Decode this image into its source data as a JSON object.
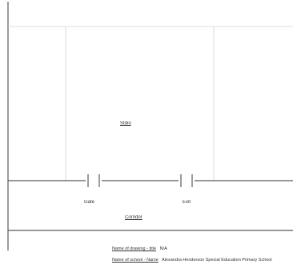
{
  "diagram": {
    "room_label": "Stdio",
    "gate_left_label": "Gate",
    "gate_right_label": "Exit",
    "corridor_label": "Corridor",
    "legend": [
      {
        "key": "Name of drawing - title",
        "value": "N/A"
      },
      {
        "key": "Name of school - Name",
        "value": "Alexandra Henderson Special Education Primary School"
      }
    ],
    "colors": {
      "line": "#5a5a5a",
      "light_line": "#c8c8c8",
      "text": "#333333"
    }
  }
}
